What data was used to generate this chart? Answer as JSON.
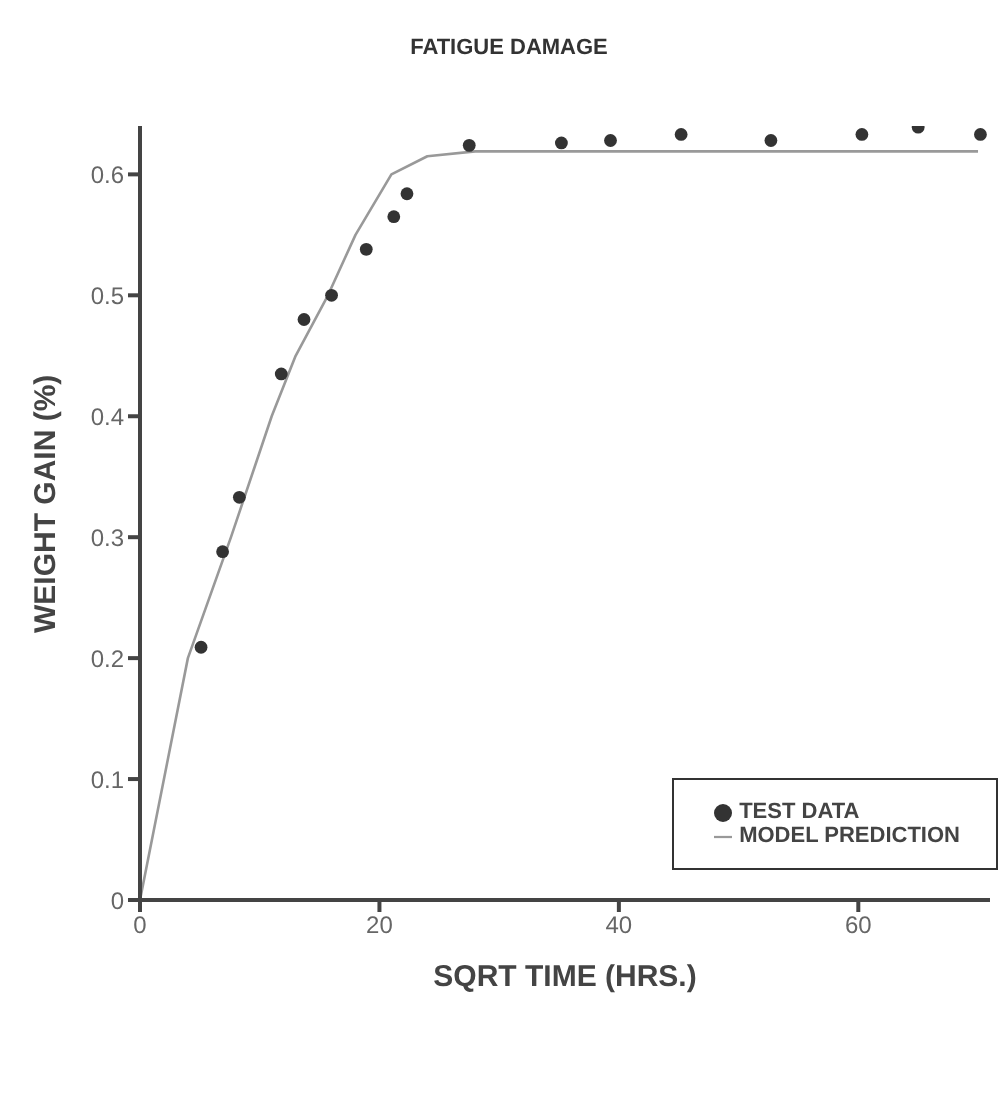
{
  "chart_data": {
    "type": "scatter",
    "title": "FATIGUE DAMAGE",
    "xlabel": "SQRT TIME (HRS.)",
    "ylabel": "WEIGHT GAIN (%)",
    "xlim": [
      0,
      71
    ],
    "xticks": [
      0,
      20,
      40,
      60
    ],
    "ylim": [
      0,
      0.64
    ],
    "yticks": [
      0,
      0.1,
      0.2,
      0.3,
      0.4,
      0.5,
      0.6
    ],
    "grid": false,
    "legend": "bottom right",
    "series": [
      {
        "name": "TEST DATA",
        "marker": "circle",
        "color": "#333333",
        "x": [
          5.1,
          6.9,
          8.3,
          11.8,
          13.7,
          16.0,
          18.9,
          21.2,
          22.3,
          27.5,
          35.2,
          39.3,
          45.2,
          52.7,
          60.3,
          65.0,
          70.2
        ],
        "values": [
          0.209,
          0.288,
          0.333,
          0.435,
          0.48,
          0.5,
          0.538,
          0.565,
          0.584,
          0.624,
          0.626,
          0.628,
          0.633,
          0.628,
          0.633,
          0.639,
          0.633
        ]
      },
      {
        "name": "MODEL PREDICTION",
        "type": "line",
        "marker": "none",
        "color": "#999999",
        "line_style": "solid",
        "x": [
          0,
          4,
          7.6,
          11,
          13,
          15.7,
          18,
          21,
          24,
          28,
          70
        ],
        "values": [
          0,
          0.2,
          0.3,
          0.4,
          0.45,
          0.5,
          0.55,
          0.6,
          0.615,
          0.619,
          0.619
        ]
      }
    ]
  }
}
